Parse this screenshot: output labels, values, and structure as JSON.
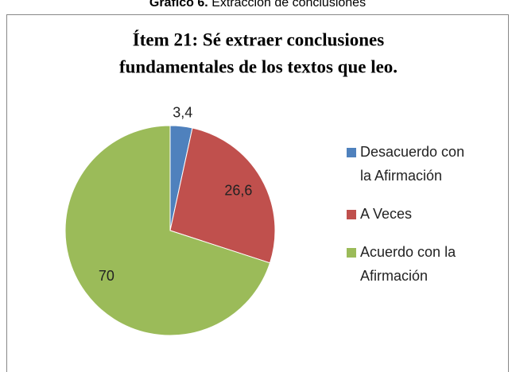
{
  "caption": {
    "label": "Gráfico 6.",
    "text": "Extracción de conclusiones"
  },
  "chart_data": {
    "type": "pie",
    "title_lines": [
      "Ítem 21: Sé extraer conclusiones",
      "fundamentales de los textos que leo."
    ],
    "categories": [
      "Desacuerdo con la Afirmación",
      "A Veces",
      "Acuerdo con la Afirmación"
    ],
    "values": [
      3.4,
      26.6,
      70
    ],
    "value_labels": [
      "3,4",
      "26,6",
      "70"
    ],
    "colors": [
      "#4f81bd",
      "#c0504d",
      "#9bbb59"
    ],
    "legend": "right"
  }
}
